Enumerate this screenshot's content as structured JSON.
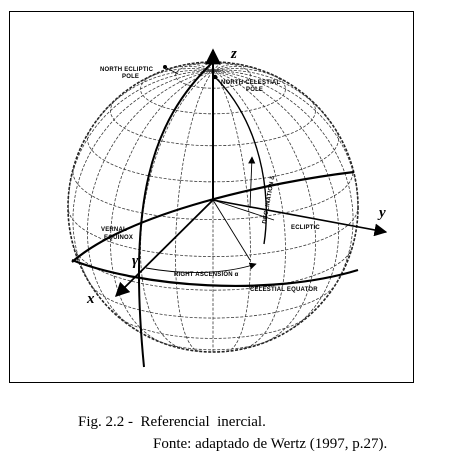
{
  "figure": {
    "axes": {
      "z": "z",
      "y": "y",
      "x": "x",
      "gamma": "γ"
    },
    "labels": {
      "north_ecliptic_pole": [
        "NORTH ECLIPTIC",
        "POLE"
      ],
      "north_celestial_pole": [
        "NORTH CELESTIAL",
        "POLE"
      ],
      "vernal_equinox": [
        "VERNAL",
        "EQUINOX"
      ],
      "ecliptic": "ECLIPTIC",
      "declination": "DECLINATION δ",
      "right_ascension": "RIGHT ASCENSION α",
      "celestial_equator": "CELESTIAL EQUATOR"
    }
  },
  "caption": {
    "line1": "Fig. 2.2 -  Referencial  inercial.",
    "line2": "Fonte: adaptado de Wertz (1997, p.27)."
  },
  "colors": {
    "ink": "#000000",
    "grid": "#3a3a3a",
    "background": "#ffffff"
  }
}
